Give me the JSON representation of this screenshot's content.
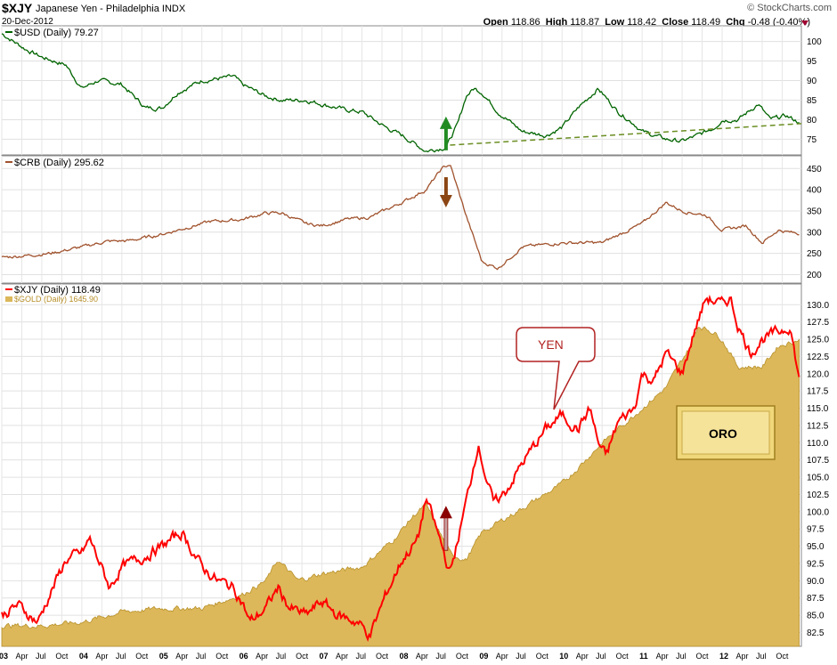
{
  "header": {
    "symbol": "$XJY",
    "name": "Japanese Yen - Philadelphia INDX",
    "date": "20-Dec-2012",
    "watermark": "© StockCharts.com",
    "open_label": "Open",
    "open": "118.86",
    "high_label": "High",
    "high": "118.87",
    "low_label": "Low",
    "low": "118.42",
    "close_label": "Close",
    "close": "118.49",
    "chg_label": "Chg",
    "chg": "-0.48 (-0.40%)"
  },
  "chart_data": [
    {
      "type": "line",
      "panel": "top",
      "legend": "$USD (Daily) 79.27",
      "color": "#006400",
      "ylim": [
        71,
        104
      ],
      "y_ticks": [
        "100",
        "95",
        "90",
        "85",
        "80",
        "75"
      ],
      "grid": true,
      "series": [
        {
          "name": "$USD (Daily)",
          "x": [
            2003.0,
            2003.3,
            2003.5,
            2003.8,
            2004.0,
            2004.2,
            2004.5,
            2004.8,
            2005.0,
            2005.2,
            2005.5,
            2005.9,
            2006.0,
            2006.3,
            2006.5,
            2006.8,
            2007.0,
            2007.3,
            2007.5,
            2007.8,
            2008.0,
            2008.3,
            2008.55,
            2008.7,
            2008.8,
            2008.9,
            2009.0,
            2009.2,
            2009.5,
            2009.8,
            2010.0,
            2010.2,
            2010.45,
            2010.7,
            2010.9,
            2011.0,
            2011.3,
            2011.5,
            2011.7,
            2011.9,
            2012.0,
            2012.2,
            2012.45,
            2012.6,
            2012.8,
            2012.97
          ],
          "y": [
            102,
            98,
            96,
            94,
            88,
            90,
            89,
            83,
            83,
            87,
            90,
            91,
            89,
            86,
            85,
            85,
            84,
            82.5,
            82,
            78,
            76,
            72,
            73,
            79,
            86,
            88,
            87,
            82,
            77,
            76,
            78,
            83,
            88,
            82,
            79,
            77,
            75,
            74.5,
            76,
            78,
            80,
            80,
            84,
            80,
            81,
            79.27
          ],
          "trendline": {
            "x": [
              2008.6,
              2013.0
            ],
            "y": [
              73.5,
              79
            ]
          },
          "annotation": {
            "type": "arrow-up",
            "x": 2008.55,
            "y": 79,
            "color": "#228b22"
          }
        }
      ]
    },
    {
      "type": "line",
      "panel": "middle",
      "legend": "$CRB (Daily) 295.62",
      "color": "#a0522d",
      "ylim": [
        180,
        480
      ],
      "y_ticks": [
        "450",
        "400",
        "350",
        "300",
        "250",
        "200"
      ],
      "grid": true,
      "series": [
        {
          "name": "$CRB (Daily)",
          "x": [
            2003.0,
            2003.3,
            2003.6,
            2004.0,
            2004.3,
            2004.6,
            2005.0,
            2005.3,
            2005.6,
            2006.0,
            2006.3,
            2006.5,
            2006.8,
            2007.0,
            2007.3,
            2007.6,
            2008.0,
            2008.3,
            2008.5,
            2008.6,
            2008.8,
            2009.0,
            2009.2,
            2009.5,
            2010.0,
            2010.5,
            2011.0,
            2011.3,
            2011.5,
            2011.8,
            2012.0,
            2012.3,
            2012.5,
            2012.7,
            2012.97
          ],
          "y": [
            240,
            245,
            250,
            265,
            278,
            280,
            295,
            310,
            325,
            330,
            345,
            345,
            320,
            315,
            330,
            335,
            370,
            400,
            450,
            460,
            340,
            230,
            215,
            265,
            275,
            275,
            320,
            370,
            350,
            340,
            305,
            315,
            275,
            305,
            295.62
          ],
          "annotation": {
            "type": "arrow-down",
            "x": 2008.55,
            "y": 375,
            "color": "#8b4513"
          }
        }
      ]
    },
    {
      "type": "area",
      "panel": "bottom",
      "legend": [
        "$XJY (Daily) 118.49",
        "$GOLD (Daily) 1645.90"
      ],
      "ylim": [
        80.5,
        133
      ],
      "y_ticks": [
        "130.0",
        "127.5",
        "125.0",
        "122.5",
        "120.0",
        "117.5",
        "115.0",
        "112.5",
        "110.0",
        "107.5",
        "105.0",
        "102.5",
        "100.0",
        "97.5",
        "95.0",
        "92.5",
        "90.0",
        "87.5",
        "85.0",
        "82.5"
      ],
      "grid": true,
      "x_labels": [
        "03",
        "Apr",
        "Jul",
        "Oct",
        "04",
        "Apr",
        "Jul",
        "Oct",
        "05",
        "Apr",
        "Jul",
        "Oct",
        "06",
        "Apr",
        "Jul",
        "Oct",
        "07",
        "Apr",
        "Jul",
        "Oct",
        "08",
        "Apr",
        "Jul",
        "Oct",
        "09",
        "Apr",
        "Jul",
        "Oct",
        "10",
        "Apr",
        "Jul",
        "Oct",
        "11",
        "Apr",
        "Jul",
        "Oct",
        "12",
        "Apr",
        "Jul",
        "Oct"
      ],
      "series": [
        {
          "name": "$XJY (Daily)",
          "color": "#ff0000",
          "x": [
            2003.0,
            2003.2,
            2003.45,
            2003.6,
            2003.8,
            2004.0,
            2004.1,
            2004.35,
            2004.5,
            2004.7,
            2005.0,
            2005.25,
            2005.5,
            2005.7,
            2005.9,
            2006.0,
            2006.1,
            2006.3,
            2006.45,
            2006.6,
            2006.8,
            2007.0,
            2007.2,
            2007.45,
            2007.6,
            2007.8,
            2008.0,
            2008.2,
            2008.3,
            2008.5,
            2008.6,
            2008.7,
            2008.85,
            2008.95,
            2009.05,
            2009.15,
            2009.3,
            2009.5,
            2009.8,
            2010.0,
            2010.2,
            2010.35,
            2010.45,
            2010.55,
            2010.7,
            2010.9,
            2011.0,
            2011.15,
            2011.3,
            2011.5,
            2011.65,
            2011.8,
            2012.0,
            2012.1,
            2012.2,
            2012.35,
            2012.5,
            2012.7,
            2012.85,
            2012.97
          ],
          "y": [
            85,
            86.5,
            84,
            88,
            93,
            94,
            96,
            89,
            92,
            93,
            95,
            97,
            92,
            90,
            89,
            87,
            84,
            86,
            89,
            86,
            85,
            87,
            85,
            84,
            82,
            88,
            93,
            96,
            102,
            95,
            91,
            96,
            104,
            110,
            105,
            101,
            103,
            107,
            112,
            114,
            112,
            115,
            110,
            108,
            113,
            115,
            120,
            119,
            123,
            120,
            126,
            131,
            130,
            131,
            127,
            123,
            125,
            126,
            127,
            118.49
          ]
        },
        {
          "name": "$GOLD (Daily)",
          "color": "#d4a017",
          "x": [
            2003.0,
            2003.5,
            2004.0,
            2004.5,
            2005.0,
            2005.5,
            2006.0,
            2006.3,
            2006.45,
            2006.7,
            2007.0,
            2007.5,
            2007.9,
            2008.15,
            2008.3,
            2008.6,
            2008.8,
            2009.0,
            2009.5,
            2010.0,
            2010.5,
            2011.0,
            2011.3,
            2011.6,
            2011.7,
            2011.9,
            2012.0,
            2012.2,
            2012.5,
            2012.7,
            2012.97
          ],
          "y": [
            83.5,
            83.5,
            84,
            85.5,
            86,
            86,
            88,
            90,
            93,
            90,
            91,
            92,
            96,
            99.5,
            101,
            94,
            93,
            97,
            100.5,
            104,
            110,
            115,
            118,
            124,
            127,
            126,
            125,
            121,
            121,
            124,
            125
          ]
        }
      ],
      "annotations": [
        {
          "type": "callout",
          "text": "YEN"
        },
        {
          "type": "label-box",
          "text": "ORO"
        },
        {
          "type": "arrow-up",
          "x": 2008.55,
          "y": 97.5,
          "color": "#8b0000"
        }
      ]
    }
  ]
}
